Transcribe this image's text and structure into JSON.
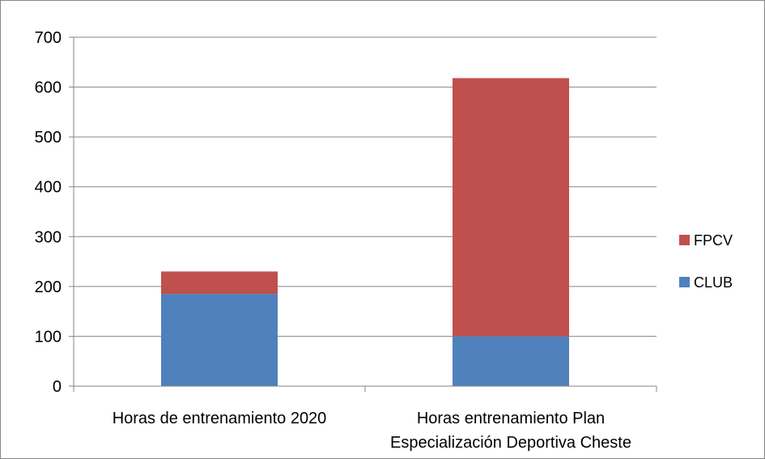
{
  "chart_data": {
    "type": "bar",
    "stacked": true,
    "categories": [
      [
        "Horas de entrenamiento 2020"
      ],
      [
        "Horas entrenamiento Plan",
        "Especialización Deportiva Cheste"
      ]
    ],
    "series": [
      {
        "name": "CLUB",
        "values": [
          185,
          100
        ],
        "color": "#4F81BD"
      },
      {
        "name": "FPCV",
        "values": [
          45,
          518
        ],
        "color": "#C0504D"
      }
    ],
    "ylim": [
      0,
      700
    ],
    "yticks": [
      0,
      100,
      200,
      300,
      400,
      500,
      600,
      700
    ],
    "grid": true,
    "legend": "right"
  }
}
